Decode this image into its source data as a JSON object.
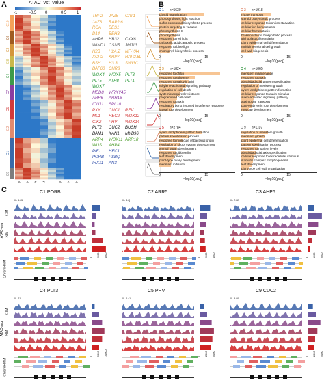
{
  "panels": {
    "a": "A",
    "b": "B",
    "c": "C"
  },
  "heatmap": {
    "legend_title": "ATAC_vst_value",
    "legend_ticks": [
      "-1",
      "-0.5",
      "0",
      "0.5",
      "1"
    ],
    "clusters": [
      "C10",
      "C6",
      "C3",
      "C8",
      "C4",
      "C7",
      "C5",
      "C2",
      "C1",
      "C9"
    ],
    "cluster_colors": [
      "#f4a259",
      "#a05c20",
      "#d4963a",
      "#c9b84a",
      "#3d9a4a",
      "#8b3ca0",
      "#d23a3a",
      "#e08a6e",
      "#3a6aa8",
      "#7d7d7d"
    ],
    "x_ticks": [
      "0",
      "3",
      "5",
      "7",
      "3",
      "6",
      "8"
    ],
    "cim": "CIM",
    "sim": "SIM"
  },
  "gene_columns": [
    {
      "color": "#e8a33a",
      "rows": [
        [
          "TRP2",
          "JAZ5",
          "CAT1"
        ],
        [
          "JAZ6",
          "RAP2.6"
        ],
        [
          "RGA",
          "BES1"
        ],
        [
          "D14",
          "BEH3"
        ]
      ]
    },
    {
      "color": "#555555",
      "rows": [
        [
          "AHP6",
          "HB32",
          "CKX6"
        ],
        [
          "WIND1",
          "CSN5",
          "JMJ13"
        ]
      ]
    },
    {
      "color": "#e8a33a",
      "rows": [
        [
          "H2B",
          "H2A.Z",
          "NF-YA4"
        ],
        [
          "XCP2",
          "KRP7",
          "RAP2.6L"
        ],
        [
          "BSH",
          "H3.3",
          "SWI3C"
        ],
        [
          "BAF60",
          "CHR8"
        ]
      ]
    },
    {
      "color": "#2e9a3e",
      "rows": [
        [
          "WOX4",
          "WOX5",
          "PLT3"
        ],
        [
          "PLT5",
          "ATH8",
          "PLT1"
        ],
        [
          "WOX7"
        ]
      ]
    },
    {
      "color": "#8b3ca0",
      "rows": [
        [
          "MED8",
          "WRKY45"
        ],
        [
          "ARR6",
          "ARR16"
        ],
        [
          "ICU11",
          "SPL10"
        ]
      ]
    },
    {
      "color": "#d23a3a",
      "rows": [
        [
          "PXY",
          "CUC1",
          "REV"
        ],
        [
          "ML1",
          "HEC2",
          "WOX12"
        ],
        [
          "CIK2",
          "PHV",
          "WOX14"
        ]
      ]
    },
    {
      "color": "#111111",
      "rows": [
        [
          "PLT2",
          "CUC2",
          "BUSH"
        ],
        [
          "BAM1",
          "KAN1",
          "MYB96"
        ]
      ]
    },
    {
      "color": "#4a9a2a",
      "rows": [
        [
          "ARR4",
          "WOX11",
          "ARR18"
        ],
        [
          "WUS",
          "AHP4"
        ]
      ]
    },
    {
      "color": "#2a4aa8",
      "rows": [
        [
          "PIF1",
          "HEC1"
        ],
        [
          "PORB",
          "PSBQ"
        ],
        [
          "IRX11",
          "AN3"
        ]
      ]
    }
  ],
  "go": [
    {
      "id": "C 1",
      "n": "n=5630",
      "color": "#3a6aa8",
      "terms": [
        "plastid organization",
        "photosynthesis, light reaction",
        "sulfur compound biosynthetic process",
        "protein targeting to vacuole",
        "photosynthesis II",
        "photosynthesis",
        "response to red light",
        "carboxylic acid catabolic process",
        "response to blue light",
        "chlorophyll biosynthetic process"
      ]
    },
    {
      "id": "C 2",
      "n": "n=1918",
      "color": "#e08a6e",
      "terms": [
        "nitrate transport",
        "steroid biosynthetic process",
        "cellular response to iron ion starvation",
        "cellular ion homeostasis",
        "cellular homeostasis",
        "brassinosteroid biosynthetic process",
        "trichoblast differentiation",
        "plant epidermal cell differentiation",
        "multidimensional cell growth",
        "cell wall biogenesis"
      ]
    },
    {
      "id": "C 3",
      "n": "n=1824",
      "color": "#d4963a",
      "terms": [
        "response to chitin",
        "response to ethylene",
        "response to salicylic acid",
        "ethylene-activated signaling pathway",
        "regulation of cell death",
        "systemic acquired resistance",
        "programmed cell death",
        "response to auxin",
        "respiratory burst involved in defense response",
        "lateral root development"
      ]
    },
    {
      "id": "C 4",
      "n": "n=1065",
      "color": "#3d9a4a",
      "terms": [
        "meristem maintenance",
        "response to auxin",
        "abaxial/adaxial pattern specification",
        "regulation of meristem growth",
        "xylem and phloem pattern formation",
        "cellular response to auxin stimulus",
        "auxin-activated signaling pathway",
        "auxin polar transport",
        "post-embryonic root development",
        "root cap development"
      ]
    },
    {
      "id": "C 5",
      "n": "n=2784",
      "color": "#d23a3a",
      "terms": [
        "xylem and phloem pattern formation",
        "pattern specification process",
        "response to molecule of bacterial origin",
        "regulation of shoot system development",
        "animal organ development",
        "response to gibberellin",
        "leaf development",
        "plant-type ovary development",
        "meristem initiation"
      ]
    },
    {
      "id": "C 9",
      "n": "n=1107",
      "color": "#7d7d7d",
      "terms": [
        "regulation of meristem growth",
        "meristem growth",
        "plant epidermal cell differentiation",
        "pattern specification process",
        "response to nutrient levels",
        "abaxial/adaxial axis specification",
        "cellular response to extracellular stimulus",
        "stomatal complex morphogenesis",
        "leaf development",
        "plant-type cell wall organization"
      ]
    }
  ],
  "go_axis": {
    "ticks": [
      "0",
      "15"
    ],
    "label": "−log10(padj)"
  },
  "go_values": [
    [
      15,
      9,
      8,
      7,
      6,
      5.5,
      5,
      4.5,
      4,
      3.8
    ],
    [
      10,
      9,
      8,
      7.5,
      7,
      6,
      5.5,
      5,
      4.5,
      4
    ],
    [
      20,
      12,
      10,
      9,
      8,
      7,
      6,
      5.5,
      5,
      4.5
    ],
    [
      10,
      8,
      7,
      6,
      5.5,
      5,
      4.5,
      4,
      3.5,
      3
    ],
    [
      14,
      10,
      8,
      7,
      6,
      5.5,
      5,
      4.5,
      4
    ],
    [
      9,
      8,
      7,
      6,
      5.5,
      5,
      4.5,
      4,
      3.5,
      3
    ]
  ],
  "tracks": [
    {
      "title": "C1 PORB",
      "range": "[0 - 5.65]",
      "bars": [
        0.55,
        0.3,
        0.2,
        0.25,
        0.75,
        0.95
      ],
      "xticks": [
        "0",
        "2000",
        "4000"
      ]
    },
    {
      "title": "C2 ARR5",
      "range": "[0 - 3.6]",
      "bars": [
        0.7,
        0.5,
        0.45,
        0.3,
        0.35,
        0.4
      ],
      "xticks": [
        "0",
        "2000",
        "4000"
      ]
    },
    {
      "title": "C3 AHP6",
      "range": "[0 - 7.22]",
      "bars": [
        0.45,
        0.95,
        0.7,
        0.55,
        0.3,
        0.15
      ],
      "xticks": [
        "0",
        "1000",
        "2000"
      ]
    },
    {
      "title": "C4 PLT3",
      "range": "[0 - 21]",
      "bars": [
        0.2,
        0.5,
        0.7,
        0.85,
        0.7,
        0.5
      ],
      "xticks": [
        "0",
        "5000",
        "10000"
      ]
    },
    {
      "title": "C5 PHV",
      "range": "[0 - 6.41]",
      "bars": [
        0.3,
        0.5,
        0.8,
        0.95,
        0.85,
        0.75
      ],
      "xticks": [
        "0",
        "2500",
        "5000"
      ]
    },
    {
      "title": "C9 CUC2",
      "range": "[0 - 9.90]",
      "bars": [
        0.35,
        0.55,
        0.85,
        0.65,
        0.5,
        0.45
      ],
      "xticks": [
        "0",
        "2000",
        "4000"
      ]
    }
  ],
  "track_side": {
    "atac": "ATAC-seq",
    "cim": "CIM",
    "sim": "SIM",
    "chromhmm": "ChromHMM",
    "norm": "RNA-seq normCounts"
  }
}
